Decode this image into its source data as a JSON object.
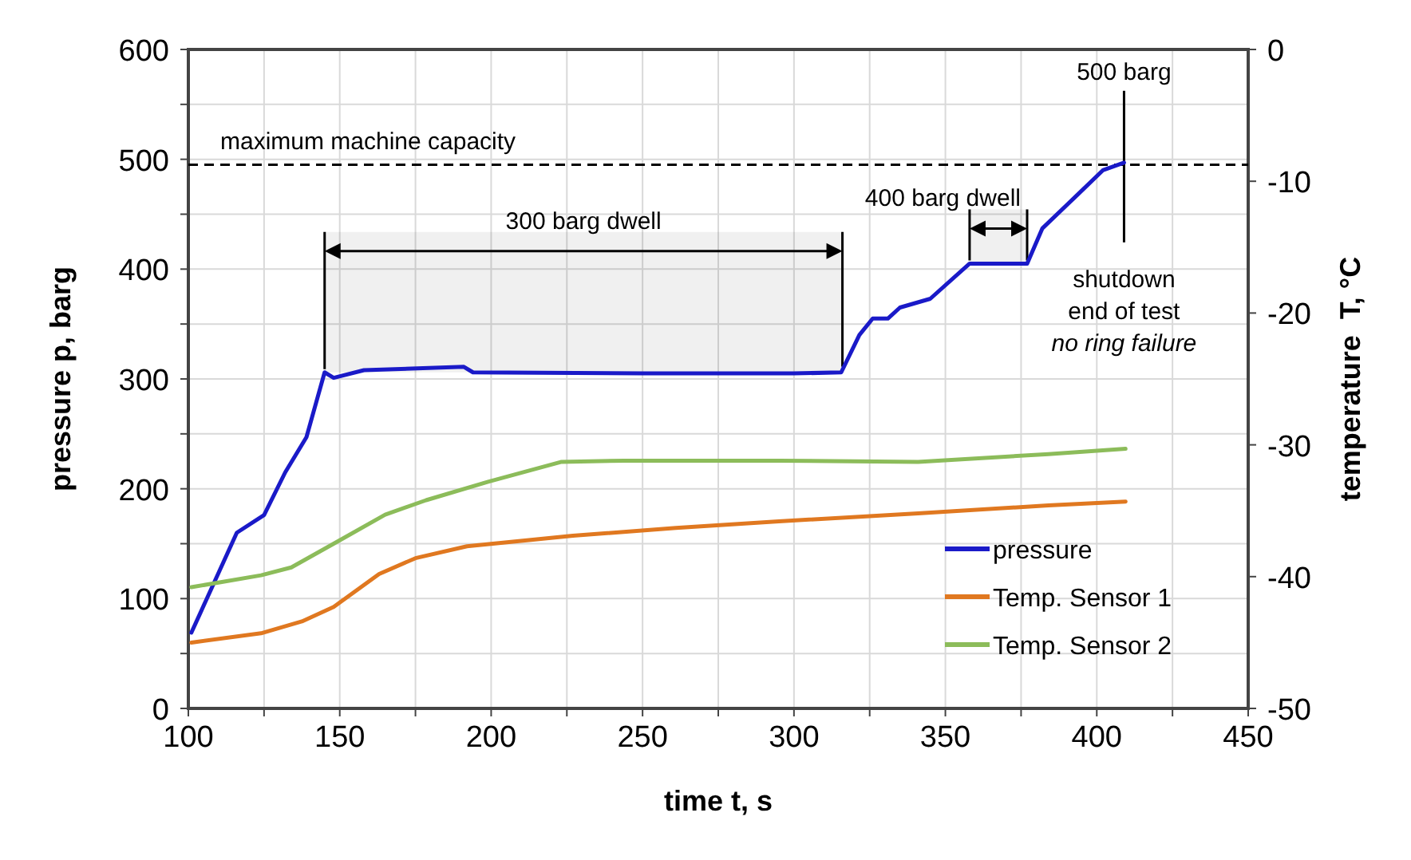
{
  "chart_data": {
    "type": "line",
    "xlabel": "time t, s",
    "ylabel": "pressure p, barg",
    "y2label": "temperature  T, °C",
    "xlim": [
      100,
      450
    ],
    "xticks": [
      100,
      {
        "value": 125,
        "label": null
      },
      150,
      {
        "value": 175,
        "label": null
      },
      200,
      {
        "value": 225,
        "label": null
      },
      250,
      {
        "value": 275,
        "label": null
      },
      300,
      {
        "value": 325,
        "label": null
      },
      350,
      {
        "value": 375,
        "label": null
      },
      400,
      {
        "value": 425,
        "label": null
      },
      450
    ],
    "ylim": [
      0,
      600
    ],
    "yticks": [
      0,
      {
        "value": 50,
        "label": null
      },
      100,
      {
        "value": 150,
        "label": null
      },
      200,
      {
        "value": 250,
        "label": null
      },
      300,
      {
        "value": 350,
        "label": null
      },
      400,
      {
        "value": 450,
        "label": null
      },
      500,
      {
        "value": 550,
        "label": null
      },
      600
    ],
    "y2lim": [
      -50,
      0
    ],
    "y2ticks": [
      -50,
      -40,
      -30,
      -20,
      -10,
      0
    ],
    "grid": true,
    "legend": "bottom right",
    "line_style": "solid",
    "marker": "none",
    "series": [
      {
        "name": "pressure",
        "color": "#1a1ac8",
        "x": [
          101,
          116,
          125,
          132,
          139,
          145,
          148,
          158,
          191,
          194,
          250,
          300,
          315.6,
          321.6,
          326,
          331,
          335,
          345,
          358,
          377,
          382,
          392.6,
          402,
          409
        ],
        "values": [
          69,
          160,
          176,
          215,
          247,
          306,
          301,
          308,
          311,
          306,
          305,
          305,
          306,
          340,
          355,
          355,
          365,
          373,
          405,
          405,
          437,
          465,
          490,
          497
        ]
      },
      {
        "name": "Temp. Sensor 1",
        "color": "#e07820",
        "axis": "y2",
        "x": [
          101,
          124,
          137.5,
          148,
          163,
          175,
          192,
          227,
          261,
          295,
          341,
          384,
          409.5
        ],
        "values": [
          -45,
          -44.3,
          -43.4,
          -42.3,
          -39.8,
          -38.6,
          -37.7,
          -36.9,
          -36.3,
          -35.8,
          -35.2,
          -34.6,
          -34.3
        ]
      },
      {
        "name": "Temp. Sensor 2",
        "color": "#8cbc5a",
        "axis": "y2",
        "x": [
          101,
          124,
          134,
          148,
          165,
          178.5,
          199,
          223,
          244,
          295,
          341,
          384,
          409.5
        ],
        "values": [
          -40.8,
          -39.9,
          -39.3,
          -37.5,
          -35.3,
          -34.2,
          -32.8,
          -31.3,
          -31.2,
          -31.2,
          -31.3,
          -30.7,
          -30.3
        ]
      }
    ],
    "ref_lines": [
      {
        "axis": "y",
        "value": 495,
        "label": "maximum machine capacity",
        "line_style": "dashed",
        "color": "#000000"
      },
      {
        "axis": "x",
        "value": 409,
        "label": "500 barg"
      }
    ],
    "bands": [
      {
        "axis": "x",
        "from": 145,
        "to": 316,
        "label": "300 barg dwell"
      },
      {
        "axis": "x",
        "from": 358,
        "to": 377,
        "label": "400 barg dwell"
      }
    ],
    "annotations": [
      "shutdown\nend of test\nno ring failure"
    ]
  }
}
